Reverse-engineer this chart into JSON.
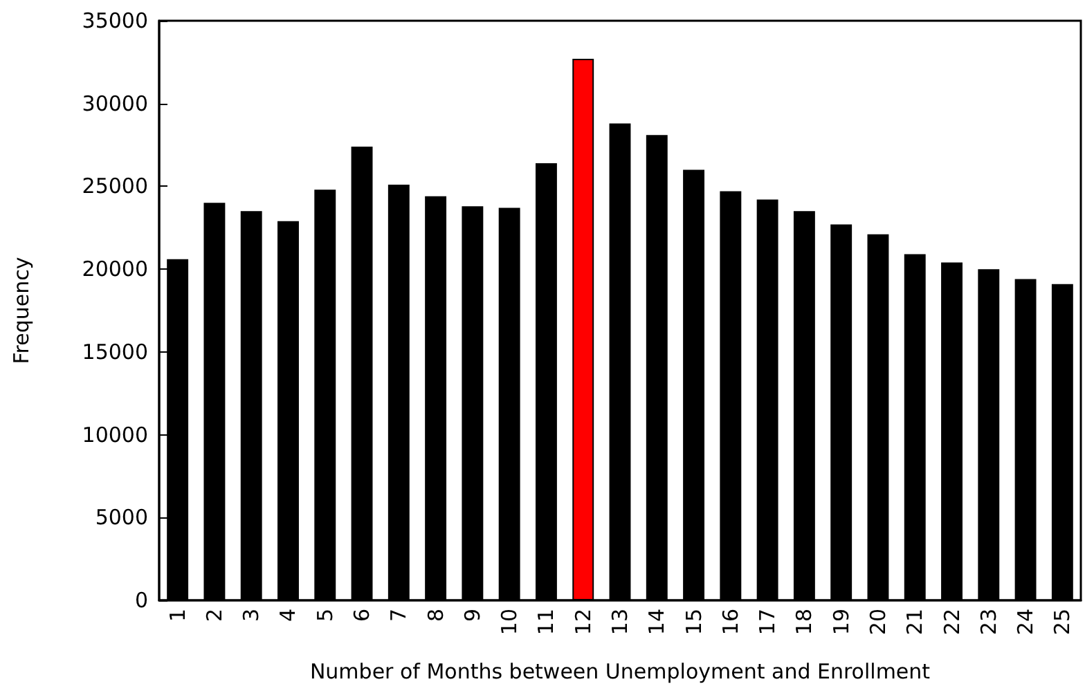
{
  "chart_data": {
    "type": "bar",
    "xlabel": "Number of Months between Unemployment and Enrollment",
    "ylabel": "Frequency",
    "categories": [
      "1",
      "2",
      "3",
      "4",
      "5",
      "6",
      "7",
      "8",
      "9",
      "10",
      "11",
      "12",
      "13",
      "14",
      "15",
      "16",
      "17",
      "18",
      "19",
      "20",
      "21",
      "22",
      "23",
      "24",
      "25"
    ],
    "values": [
      20600,
      24000,
      23500,
      22900,
      24800,
      27400,
      25100,
      24400,
      23800,
      23700,
      26400,
      32700,
      28800,
      28100,
      26000,
      24700,
      24200,
      23500,
      22700,
      22100,
      20900,
      20400,
      20000,
      19400,
      19100
    ],
    "colors": [
      "#000000",
      "#000000",
      "#000000",
      "#000000",
      "#000000",
      "#000000",
      "#000000",
      "#000000",
      "#000000",
      "#000000",
      "#000000",
      "#ff0000",
      "#000000",
      "#000000",
      "#000000",
      "#000000",
      "#000000",
      "#000000",
      "#000000",
      "#000000",
      "#000000",
      "#000000",
      "#000000",
      "#000000",
      "#000000"
    ],
    "ylim": [
      0,
      35000
    ],
    "yticks": [
      0,
      5000,
      10000,
      15000,
      20000,
      25000,
      30000,
      35000
    ],
    "grid": false
  }
}
